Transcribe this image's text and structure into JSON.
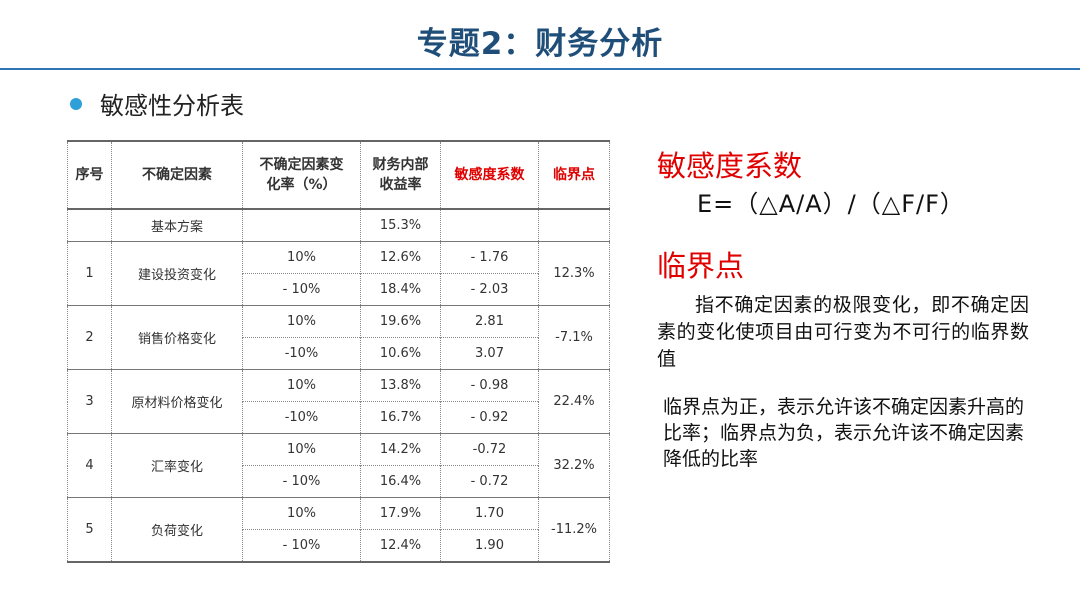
{
  "title": "专题2：财务分析",
  "subtitle": "敏感性分析表",
  "table": {
    "headers": {
      "no": "序号",
      "factor": "不确定因素",
      "rate_l1": "不确定因素变",
      "rate_l2": "化率（%）",
      "irr_l1": "财务内部",
      "irr_l2": "收益率",
      "coef": "敏感度系数",
      "crit": "临界点"
    },
    "base": {
      "label": "基本方案",
      "irr": "15.3%"
    },
    "rows": [
      {
        "no": "1",
        "factor": "建设投资变化",
        "crit": "12.3%",
        "a": {
          "rate": "10%",
          "irr": "12.6%",
          "coef": "- 1.76"
        },
        "b": {
          "rate": "- 10%",
          "irr": "18.4%",
          "coef": "- 2.03"
        }
      },
      {
        "no": "2",
        "factor": "销售价格变化",
        "crit": "-7.1%",
        "a": {
          "rate": "10%",
          "irr": "19.6%",
          "coef": "2.81"
        },
        "b": {
          "rate": "-10%",
          "irr": "10.6%",
          "coef": "3.07"
        }
      },
      {
        "no": "3",
        "factor": "原材料价格变化",
        "crit": "22.4%",
        "a": {
          "rate": "10%",
          "irr": "13.8%",
          "coef": "- 0.98"
        },
        "b": {
          "rate": "-10%",
          "irr": "16.7%",
          "coef": "- 0.92"
        }
      },
      {
        "no": "4",
        "factor": "汇率变化",
        "crit": "32.2%",
        "a": {
          "rate": "10%",
          "irr": "14.2%",
          "coef": "-0.72"
        },
        "b": {
          "rate": "- 10%",
          "irr": "16.4%",
          "coef": "- 0.72"
        }
      },
      {
        "no": "5",
        "factor": "负荷变化",
        "crit": "-11.2%",
        "a": {
          "rate": "10%",
          "irr": "17.9%",
          "coef": "1.70"
        },
        "b": {
          "rate": "- 10%",
          "irr": "12.4%",
          "coef": "1.90"
        }
      }
    ]
  },
  "right": {
    "coef_heading": "敏感度系数",
    "formula": "E=（△A/A）/（△F/F）",
    "crit_heading": "临界点",
    "crit_desc": "指不确定因素的极限变化，即不确定因素的变化使项目由可行变为不可行的临界数值",
    "crit_note": "临界点为正，表示允许该不确定因素升高的比率；临界点为负，表示允许该不确定因素降低的比率"
  },
  "colors": {
    "title": "#1f4e79",
    "accent_red": "#e00000",
    "rule": "#2e75b6",
    "bullet": "#2e9fd8"
  }
}
